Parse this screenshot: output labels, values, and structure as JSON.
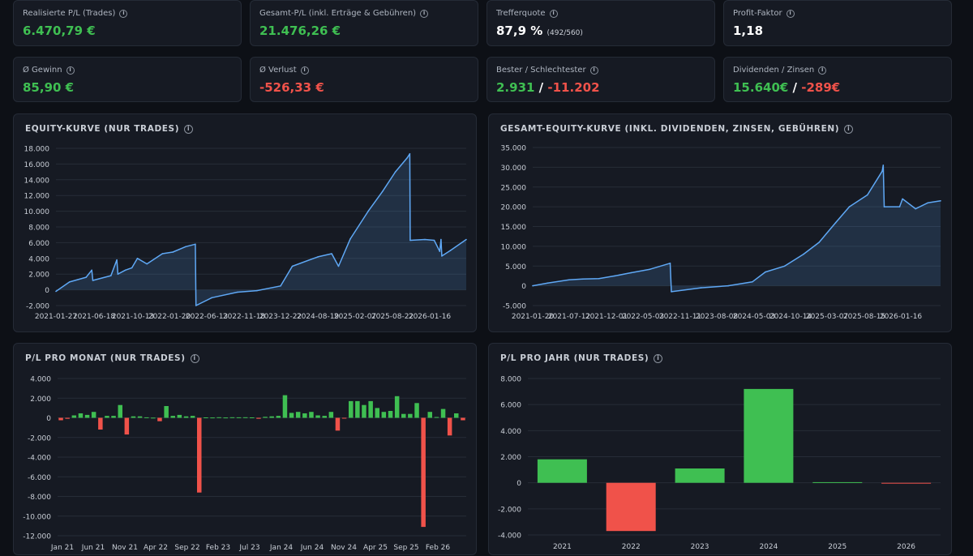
{
  "kpis": [
    {
      "label": "Realisierte P/L (Trades)",
      "value": "6.470,79 €",
      "tone": "pos"
    },
    {
      "label": "Gesamt-P/L (inkl. Erträge & Gebühren)",
      "value": "21.476,26 €",
      "tone": "pos"
    },
    {
      "label": "Trefferquote",
      "value": "87,9 %",
      "sub": "(492/560)",
      "tone": "neu"
    },
    {
      "label": "Profit-Faktor",
      "value": "1,18",
      "tone": "neu"
    },
    {
      "label": "Ø Gewinn",
      "value": "85,90 €",
      "tone": "pos"
    },
    {
      "label": "Ø Verlust",
      "value": "-526,33 €",
      "tone": "neg"
    },
    {
      "label": "Bester / Schlechtester",
      "value_a": "2.931",
      "sep": " / ",
      "value_b": "-11.202"
    },
    {
      "label": "Dividenden / Zinsen",
      "value_a": "15.640€",
      "sep": " / ",
      "value_b": "-289€"
    }
  ],
  "colors": {
    "positive": "#3fbf52",
    "negative": "#f0524a",
    "line": "#5fa8f5",
    "grid": "#262c37",
    "axis_text": "#c9ced6"
  },
  "info_icon": "info-icon",
  "chart_data": [
    {
      "type": "area",
      "title": "EQUITY-KURVE (NUR TRADES)",
      "ylim": [
        -2000,
        18000
      ],
      "yticks": [
        -2000,
        0,
        2000,
        4000,
        6000,
        8000,
        10000,
        12000,
        14000,
        16000,
        18000
      ],
      "ytick_labels": [
        "-2.000",
        "0",
        "2.000",
        "4.000",
        "6.000",
        "8.000",
        "10.000",
        "12.000",
        "14.000",
        "16.000",
        "18.000"
      ],
      "xlim": [
        "2021-01-27",
        "2026-05-15"
      ],
      "xtick_labels": [
        "2021-01-27",
        "2021-06-18",
        "2021-10-13",
        "2022-01-20",
        "2022-06-13",
        "2022-11-18",
        "2023-12-22",
        "2024-08-19",
        "2025-02-07",
        "2025-08-22",
        "2026-01-16"
      ],
      "grid": true,
      "x": [
        "2021-01-27",
        "2021-04-01",
        "2021-06-18",
        "2021-07-15",
        "2021-07-20",
        "2021-10-13",
        "2021-11-10",
        "2021-11-15",
        "2021-12-20",
        "2022-01-20",
        "2022-02-15",
        "2022-04-01",
        "2022-06-13",
        "2022-08-01",
        "2022-10-01",
        "2022-11-15",
        "2022-11-18",
        "2023-02-01",
        "2023-06-01",
        "2023-09-01",
        "2023-12-22",
        "2024-02-15",
        "2024-06-15",
        "2024-08-19",
        "2024-09-20",
        "2024-11-15",
        "2025-02-07",
        "2025-04-15",
        "2025-06-15",
        "2025-08-10",
        "2025-08-22",
        "2025-08-24",
        "2025-11-01",
        "2025-12-15",
        "2026-01-10",
        "2026-01-16",
        "2026-01-20",
        "2026-03-01",
        "2026-05-15"
      ],
      "y": [
        -200,
        1000,
        1600,
        2500,
        1200,
        1800,
        3800,
        2000,
        2500,
        2800,
        4000,
        3300,
        4600,
        4800,
        5500,
        5800,
        -2000,
        -1000,
        -300,
        -100,
        500,
        3000,
        4200,
        4600,
        3000,
        6500,
        10000,
        12500,
        15000,
        16800,
        17300,
        6300,
        6400,
        6300,
        4900,
        6400,
        4300,
        5000,
        6400
      ]
    },
    {
      "type": "area",
      "title": "GESAMT-EQUITY-KURVE (INKL. DIVIDENDEN, ZINSEN, GEBÜHREN)",
      "ylim": [
        -5000,
        35000
      ],
      "yticks": [
        -5000,
        0,
        5000,
        10000,
        15000,
        20000,
        25000,
        30000,
        35000
      ],
      "ytick_labels": [
        "-5.000",
        "0",
        "5.000",
        "10.000",
        "15.000",
        "20.000",
        "25.000",
        "30.000",
        "35.000"
      ],
      "xlim": [
        "2021-01-20",
        "2026-05-15"
      ],
      "xtick_labels": [
        "2021-01-20",
        "2021-07-12",
        "2021-12-01",
        "2022-05-03",
        "2022-11-11",
        "2023-08-08",
        "2024-05-03",
        "2024-10-14",
        "2025-03-07",
        "2025-08-15",
        "2026-01-16"
      ],
      "grid": true,
      "x": [
        "2021-01-20",
        "2021-04-01",
        "2021-07-12",
        "2021-09-15",
        "2021-12-01",
        "2022-02-15",
        "2022-05-03",
        "2022-08-01",
        "2022-11-05",
        "2022-11-11",
        "2023-04-01",
        "2023-08-08",
        "2023-12-01",
        "2024-02-01",
        "2024-05-03",
        "2024-08-01",
        "2024-10-14",
        "2025-01-01",
        "2025-03-07",
        "2025-06-01",
        "2025-08-10",
        "2025-08-15",
        "2025-08-20",
        "2025-11-01",
        "2025-11-15",
        "2026-01-16",
        "2026-03-15",
        "2026-05-15"
      ],
      "y": [
        0,
        700,
        1500,
        1700,
        1800,
        2500,
        3300,
        4200,
        5700,
        -1500,
        -500,
        0,
        1000,
        3500,
        5000,
        8000,
        11000,
        16000,
        20000,
        23000,
        29000,
        30500,
        20000,
        20000,
        22000,
        19500,
        21000,
        21500
      ]
    },
    {
      "type": "bar",
      "title": "P/L PRO MONAT (NUR TRADES)",
      "ylim": [
        -12000,
        4000
      ],
      "yticks": [
        -12000,
        -10000,
        -8000,
        -6000,
        -4000,
        -2000,
        0,
        2000,
        4000
      ],
      "ytick_labels": [
        "-12.000",
        "-10.000",
        "-8.000",
        "-6.000",
        "-4.000",
        "-2.000",
        "0",
        "2.000",
        "4.000"
      ],
      "xtick_labels": [
        "Jan 21",
        "Jun 21",
        "Nov 21",
        "Apr 22",
        "Sep 22",
        "Feb 23",
        "Jul 23",
        "Jan 24",
        "Jun 24",
        "Nov 24",
        "Apr 25",
        "Sep 25",
        "Feb 26"
      ],
      "grid": true,
      "values": [
        -250,
        -100,
        250,
        450,
        300,
        600,
        -1200,
        200,
        200,
        1300,
        -1700,
        150,
        150,
        50,
        20,
        -350,
        1200,
        200,
        300,
        150,
        200,
        -7600,
        40,
        30,
        60,
        30,
        60,
        50,
        60,
        40,
        -100,
        100,
        150,
        200,
        2300,
        500,
        600,
        450,
        600,
        250,
        200,
        600,
        -1300,
        -50,
        1700,
        1700,
        1300,
        1700,
        1000,
        600,
        700,
        2200,
        400,
        400,
        1500,
        -11100,
        600,
        80,
        900,
        -1800,
        450,
        -250
      ]
    },
    {
      "type": "bar",
      "title": "P/L PRO JAHR (NUR TRADES)",
      "ylim": [
        -4000,
        8000
      ],
      "yticks": [
        -4000,
        -2000,
        0,
        2000,
        4000,
        6000,
        8000
      ],
      "ytick_labels": [
        "-4.000",
        "-2.000",
        "0",
        "2.000",
        "4.000",
        "6.000",
        "8.000"
      ],
      "categories": [
        "2021",
        "2022",
        "2023",
        "2024",
        "2025",
        "2026"
      ],
      "xtick_labels": [
        "2021",
        "2022",
        "2023",
        "2024",
        "2025",
        "2026"
      ],
      "grid": true,
      "values": [
        1800,
        -3700,
        1100,
        7200,
        50,
        -50
      ]
    }
  ]
}
